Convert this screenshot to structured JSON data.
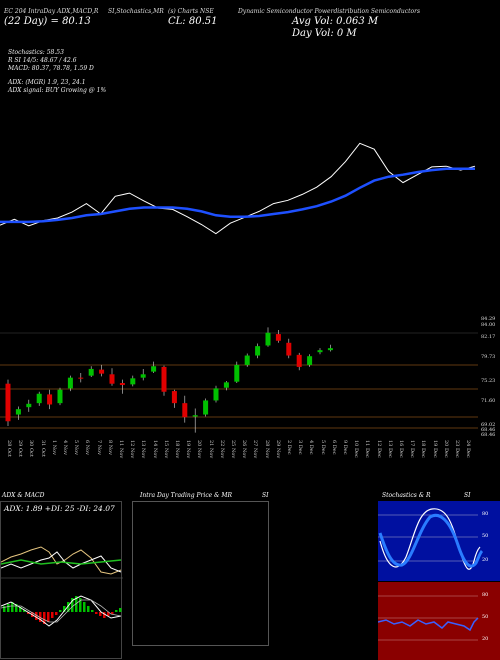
{
  "header": {
    "line1_left": "EC 204 IntraDay ADX,MACD,R",
    "line1_mid": "SI,Stochastics,MR",
    "line1_mid2": "(s) Charts NSE",
    "line1_right": "Dynamic Semiconductor Powerdistribution Semiconductors",
    "line2_left": "(22 Day) = 80.13",
    "line2_mid": "CL: 80.51",
    "line2_right": "Avg Vol: 0.063  M",
    "line3_right": "Day Vol: 0  M"
  },
  "stats": [
    "Stochastics: 58.53",
    "R          SI 14/5: 48.67 / 42.6",
    "MACD: 80.37,  78.78,  1.59 D",
    "ADX:                     (MGR) 1.9,  23,  24.1",
    "ADX  signal:                     BUY Growing @ 1%"
  ],
  "price_labels": [
    "84.29",
    "84.00",
    "82.17",
    "79.73",
    "75.23",
    "71.60",
    "69.02",
    "68.46",
    "68.46"
  ],
  "date_labels": [
    "28 Oct",
    "29 Oct",
    "30 Oct",
    "31 Oct",
    "1 Nov",
    "4 Nov",
    "5 Nov",
    "6 Nov",
    "7 Nov",
    "8 Nov",
    "11 Nov",
    "12 Nov",
    "13 Nov",
    "14 Nov",
    "15 Nov",
    "18 Nov",
    "19 Nov",
    "20 Nov",
    "21 Nov",
    "22 Nov",
    "25 Nov",
    "26 Nov",
    "27 Nov",
    "28 Nov",
    "29 Nov",
    "2 Dec",
    "3 Dec",
    "4 Dec",
    "5 Dec",
    "6 Dec",
    "9 Dec",
    "10 Dec",
    "11 Dec",
    "12 Dec",
    "13 Dec",
    "16 Dec",
    "17 Dec",
    "18 Dec",
    "19 Dec",
    "20 Dec",
    "23 Dec",
    "24 Dec"
  ],
  "panels": {
    "adx_title": "ADX  & MACD",
    "adx_values": "ADX: 1.89  +DI: 25  -DI: 24.07",
    "intraday_title": "Intra  Day Trading Price  & MR",
    "intraday_si": "SI",
    "stoch_title": "Stochastics & R",
    "stoch_si": "SI",
    "stoch_ticks": [
      "80",
      "50",
      "20"
    ],
    "rsi_ticks": [
      "80",
      "50",
      "20"
    ]
  },
  "colors": {
    "up": "#00c000",
    "down": "#e00000",
    "ema": "#1e50ff",
    "level": "#c07020",
    "rsi_bg": "#8a0000",
    "stoch_bg": "#0010a0"
  },
  "chart_data": [
    {
      "type": "line",
      "title": "Price vs EMA",
      "series": [
        {
          "name": "close",
          "values": [
            71.5,
            72.4,
            71.4,
            72.2,
            72.6,
            73.5,
            74.8,
            73.2,
            75.9,
            76.4,
            75.2,
            74.1,
            73.9,
            72.8,
            71.6,
            70.2,
            71.8,
            72.7,
            73.6,
            74.8,
            75.3,
            76.2,
            77.3,
            78.9,
            81.2,
            84.0,
            83.1,
            79.7,
            78.0,
            79.2,
            80.4,
            80.5,
            79.9,
            80.5
          ]
        },
        {
          "name": "ema",
          "values": [
            72.0,
            72.0,
            72.0,
            72.1,
            72.3,
            72.6,
            73.0,
            73.2,
            73.6,
            74.0,
            74.2,
            74.2,
            74.2,
            74.0,
            73.6,
            73.0,
            72.8,
            72.8,
            72.9,
            73.2,
            73.5,
            73.9,
            74.4,
            75.1,
            76.0,
            77.2,
            78.3,
            78.9,
            79.2,
            79.6,
            79.9,
            80.1,
            80.1,
            80.1
          ]
        }
      ]
    },
    {
      "type": "candlestick",
      "categories": [
        "28 Oct",
        "29 Oct",
        "30 Oct",
        "31 Oct",
        "1 Nov",
        "4 Nov",
        "5 Nov",
        "6 Nov",
        "7 Nov",
        "8 Nov",
        "11 Nov",
        "12 Nov",
        "13 Nov",
        "14 Nov",
        "15 Nov",
        "18 Nov",
        "19 Nov",
        "20 Nov",
        "21 Nov",
        "22 Nov",
        "25 Nov",
        "26 Nov",
        "27 Nov",
        "28 Nov",
        "29 Nov",
        "2 Dec",
        "3 Dec",
        "4 Dec",
        "5 Dec",
        "6 Dec",
        "9 Dec",
        "10 Dec"
      ],
      "ohlc": [
        [
          75.8,
          76.4,
          69.5,
          70.2
        ],
        [
          71.2,
          72.4,
          70.4,
          72.0
        ],
        [
          72.3,
          73.4,
          71.6,
          72.8
        ],
        [
          72.9,
          74.6,
          72.5,
          74.3
        ],
        [
          74.2,
          74.9,
          72.0,
          72.7
        ],
        [
          72.9,
          75.2,
          72.6,
          74.9
        ],
        [
          75.1,
          77.0,
          74.7,
          76.7
        ],
        [
          76.7,
          77.4,
          76.0,
          76.6
        ],
        [
          77.0,
          78.4,
          76.8,
          78.0
        ],
        [
          77.9,
          78.6,
          76.9,
          77.3
        ],
        [
          77.2,
          78.1,
          75.5,
          75.8
        ],
        [
          75.9,
          76.4,
          74.3,
          75.6
        ],
        [
          75.7,
          77.0,
          75.4,
          76.6
        ],
        [
          76.7,
          78.0,
          76.3,
          77.2
        ],
        [
          77.6,
          79.1,
          77.4,
          78.4
        ],
        [
          78.3,
          78.5,
          74.0,
          74.6
        ],
        [
          74.7,
          74.9,
          72.2,
          72.9
        ],
        [
          72.9,
          74.0,
          70.0,
          70.8
        ],
        [
          70.9,
          72.1,
          68.5,
          71.1
        ],
        [
          71.2,
          73.6,
          70.9,
          73.3
        ],
        [
          73.3,
          75.5,
          73.0,
          75.1
        ],
        [
          75.2,
          76.2,
          74.8,
          76.0
        ],
        [
          76.1,
          79.1,
          75.9,
          78.6
        ],
        [
          78.6,
          80.3,
          78.3,
          80.0
        ],
        [
          80.0,
          81.8,
          79.6,
          81.4
        ],
        [
          81.5,
          84.2,
          81.3,
          83.4
        ],
        [
          83.2,
          83.8,
          81.9,
          82.2
        ],
        [
          81.9,
          82.5,
          79.6,
          80.0
        ],
        [
          80.1,
          80.4,
          77.8,
          78.3
        ],
        [
          78.6,
          80.2,
          78.3,
          79.9
        ],
        [
          80.5,
          81.1,
          80.2,
          80.8
        ],
        [
          80.8,
          81.6,
          80.6,
          81.1
        ]
      ],
      "ylim": [
        68.0,
        85.0
      ]
    }
  ]
}
